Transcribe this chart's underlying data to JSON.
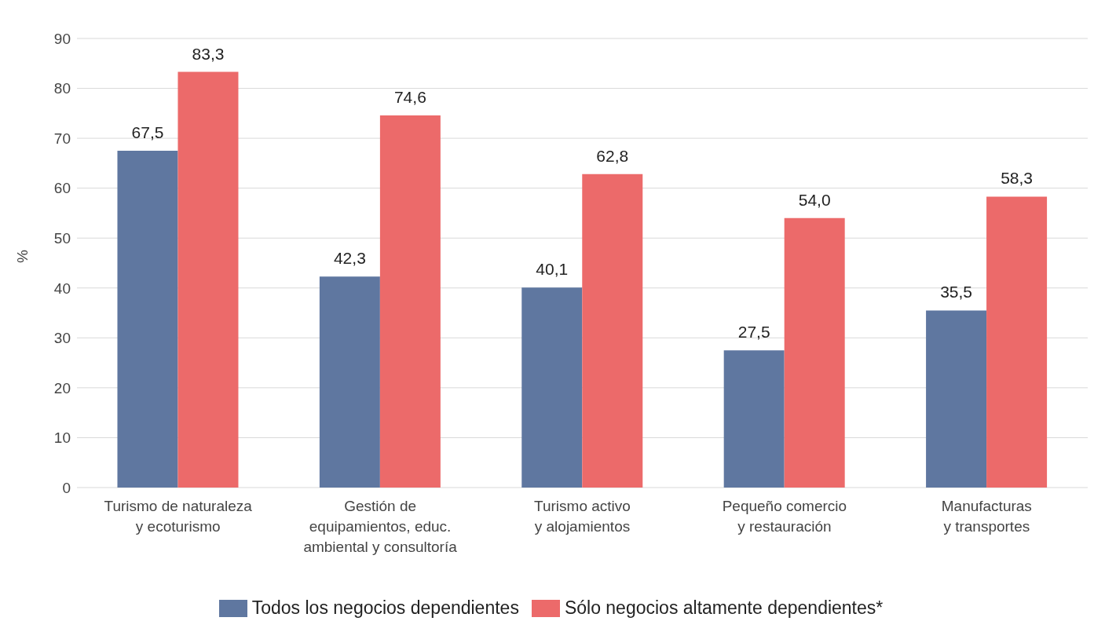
{
  "chart_data": {
    "type": "bar",
    "ylabel": "%",
    "categories": [
      "Turismo de naturaleza\ny ecoturismo",
      "Gestión de\nequipamientos, educ.\nambiental y consultoría",
      "Turismo activo\ny alojamientos",
      "Pequeño comercio\ny restauración",
      "Manufacturas\ny transportes"
    ],
    "series": [
      {
        "name": "Todos los negocios dependientes",
        "color": "#5f77a0",
        "values": [
          67.5,
          42.3,
          40.1,
          27.5,
          35.5
        ],
        "value_labels": [
          "67,5",
          "42,3",
          "40,1",
          "27,5",
          "35,5"
        ]
      },
      {
        "name": "Sólo negocios altamente dependientes*",
        "color": "#ec6a6a",
        "values": [
          83.3,
          74.6,
          62.8,
          54.0,
          58.3
        ],
        "value_labels": [
          "83,3",
          "74,6",
          "62,8",
          "54,0",
          "58,3"
        ]
      }
    ],
    "ylim": [
      0,
      90
    ],
    "yticks": [
      0,
      10,
      20,
      30,
      40,
      50,
      60,
      70,
      80,
      90
    ],
    "grid": "y",
    "legend": "bottom"
  }
}
